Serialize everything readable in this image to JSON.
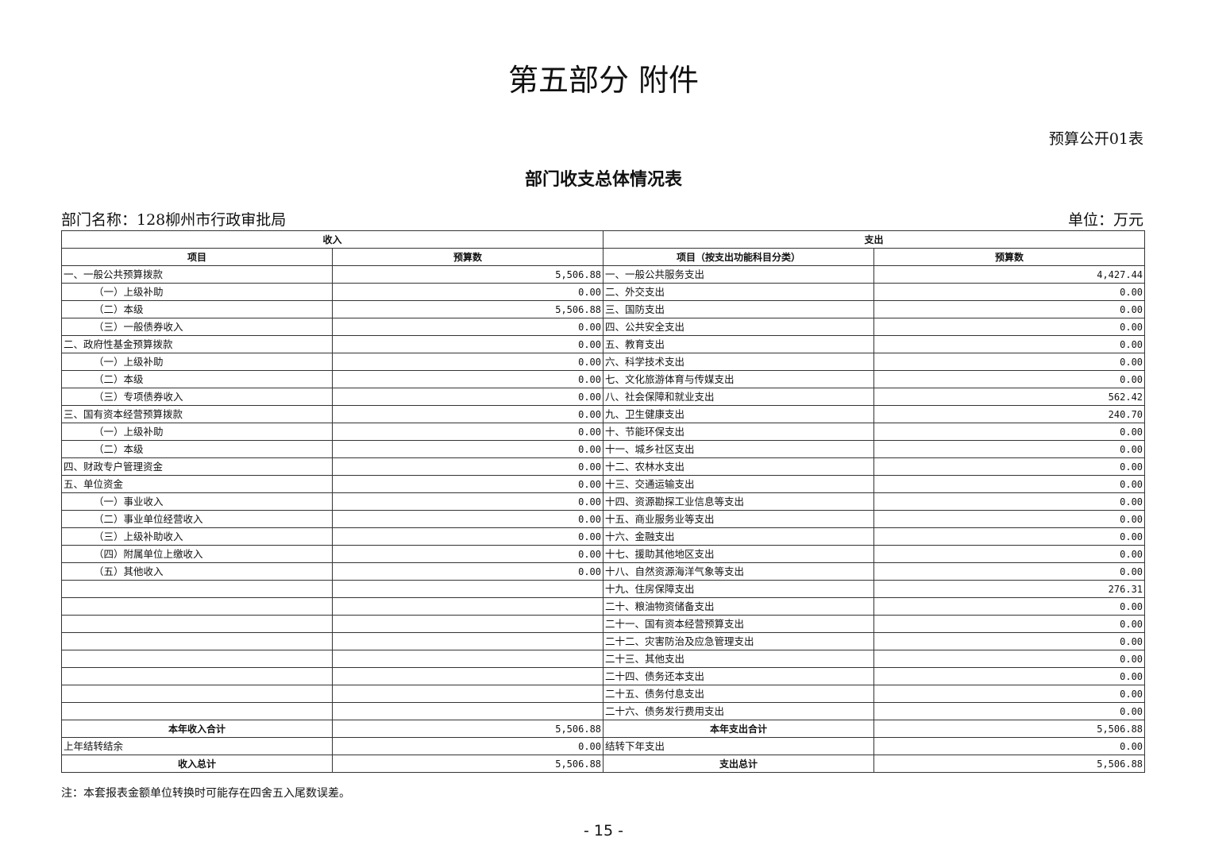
{
  "title": "第五部分  附件",
  "table_no": "预算公开01表",
  "subtitle": "部门收支总体情况表",
  "dept": "部门名称：128柳州市行政审批局",
  "unit": "单位：万元",
  "headers": {
    "income": "收入",
    "expense": "支出",
    "item": "项目",
    "budget": "预算数",
    "exp_item": "项目（按支出功能科目分类）",
    "exp_budget": "预算数"
  },
  "income": [
    {
      "name": "一、一般公共预算拨款",
      "value": "5,506.88",
      "indent": false
    },
    {
      "name": "（一）上级补助",
      "value": "0.00",
      "indent": true
    },
    {
      "name": "（二）本级",
      "value": "5,506.88",
      "indent": true
    },
    {
      "name": "（三）一般债券收入",
      "value": "0.00",
      "indent": true
    },
    {
      "name": "二、政府性基金预算拨款",
      "value": "0.00",
      "indent": false
    },
    {
      "name": "（一）上级补助",
      "value": "0.00",
      "indent": true
    },
    {
      "name": "（二）本级",
      "value": "0.00",
      "indent": true
    },
    {
      "name": "（三）专项债券收入",
      "value": "0.00",
      "indent": true
    },
    {
      "name": "三、国有资本经营预算拨款",
      "value": "0.00",
      "indent": false
    },
    {
      "name": "（一）上级补助",
      "value": "0.00",
      "indent": true
    },
    {
      "name": "（二）本级",
      "value": "0.00",
      "indent": true
    },
    {
      "name": "四、财政专户管理资金",
      "value": "0.00",
      "indent": false
    },
    {
      "name": "五、单位资金",
      "value": "0.00",
      "indent": false
    },
    {
      "name": "（一）事业收入",
      "value": "0.00",
      "indent": true
    },
    {
      "name": "（二）事业单位经营收入",
      "value": "0.00",
      "indent": true
    },
    {
      "name": "（三）上级补助收入",
      "value": "0.00",
      "indent": true
    },
    {
      "name": "（四）附属单位上缴收入",
      "value": "0.00",
      "indent": true
    },
    {
      "name": "（五）其他收入",
      "value": "0.00",
      "indent": true
    }
  ],
  "expense": [
    {
      "name": "一、一般公共服务支出",
      "value": "4,427.44"
    },
    {
      "name": "二、外交支出",
      "value": "0.00"
    },
    {
      "name": "三、国防支出",
      "value": "0.00"
    },
    {
      "name": "四、公共安全支出",
      "value": "0.00"
    },
    {
      "name": "五、教育支出",
      "value": "0.00"
    },
    {
      "name": "六、科学技术支出",
      "value": "0.00"
    },
    {
      "name": "七、文化旅游体育与传媒支出",
      "value": "0.00"
    },
    {
      "name": "八、社会保障和就业支出",
      "value": "562.42"
    },
    {
      "name": "九、卫生健康支出",
      "value": "240.70"
    },
    {
      "name": "十、节能环保支出",
      "value": "0.00"
    },
    {
      "name": "十一、城乡社区支出",
      "value": "0.00"
    },
    {
      "name": "十二、农林水支出",
      "value": "0.00"
    },
    {
      "name": "十三、交通运输支出",
      "value": "0.00"
    },
    {
      "name": "十四、资源勘探工业信息等支出",
      "value": "0.00"
    },
    {
      "name": "十五、商业服务业等支出",
      "value": "0.00"
    },
    {
      "name": "十六、金融支出",
      "value": "0.00"
    },
    {
      "name": "十七、援助其他地区支出",
      "value": "0.00"
    },
    {
      "name": "十八、自然资源海洋气象等支出",
      "value": "0.00"
    },
    {
      "name": "十九、住房保障支出",
      "value": "276.31"
    },
    {
      "name": "二十、粮油物资储备支出",
      "value": "0.00"
    },
    {
      "name": "二十一、国有资本经营预算支出",
      "value": "0.00"
    },
    {
      "name": "二十二、灾害防治及应急管理支出",
      "value": "0.00"
    },
    {
      "name": "二十三、其他支出",
      "value": "0.00"
    },
    {
      "name": "二十四、债务还本支出",
      "value": "0.00"
    },
    {
      "name": "二十五、债务付息支出",
      "value": "0.00"
    },
    {
      "name": "二十六、债务发行费用支出",
      "value": "0.00"
    }
  ],
  "totals": [
    {
      "in_name": "本年收入合计",
      "in_value": "5,506.88",
      "out_name": "本年支出合计",
      "out_value": "5,506.88",
      "bold": true
    },
    {
      "in_name": "上年结转结余",
      "in_value": "0.00",
      "out_name": "结转下年支出",
      "out_value": "0.00",
      "bold": false
    },
    {
      "in_name": "收入总计",
      "in_value": "5,506.88",
      "out_name": "支出总计",
      "out_value": "5,506.88",
      "bold": true
    }
  ],
  "note": "注：本套报表金额单位转换时可能存在四舍五入尾数误差。",
  "page": "- 15 -"
}
